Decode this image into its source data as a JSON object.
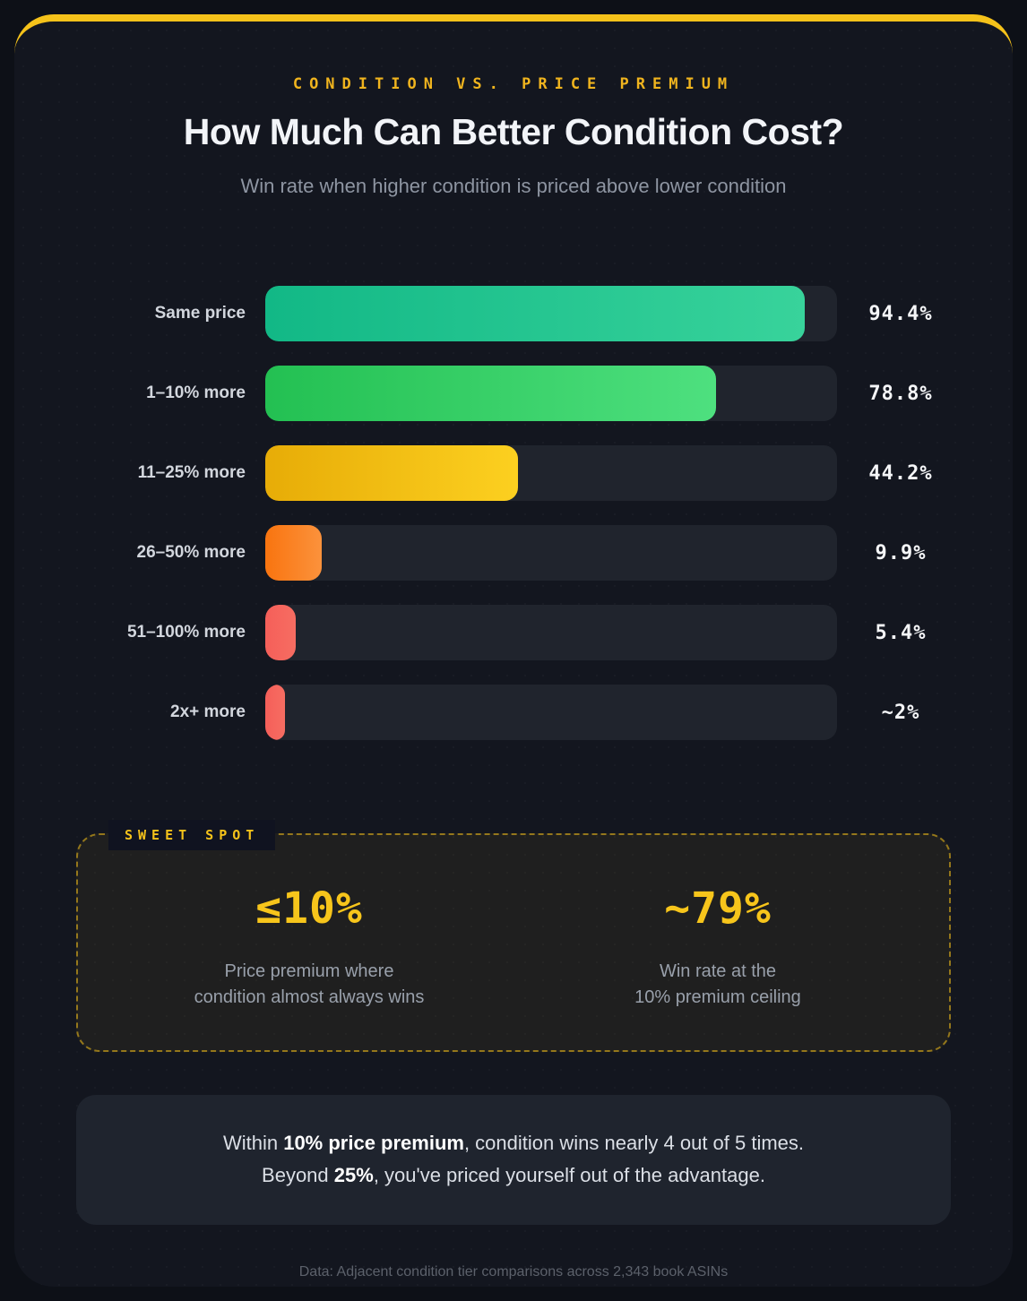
{
  "header": {
    "eyebrow": "CONDITION VS. PRICE PREMIUM",
    "title": "How Much Can Better Condition Cost?",
    "subtitle": "Win rate when higher condition is priced above lower condition"
  },
  "chart_data": {
    "type": "bar",
    "orientation": "horizontal",
    "title": "Win rate when higher condition is priced above lower condition",
    "categories": [
      "Same price",
      "1–10% more",
      "11–25% more",
      "26–50% more",
      "51–100% more",
      "2x+ more"
    ],
    "values": [
      94.4,
      78.8,
      44.2,
      9.9,
      5.4,
      2
    ],
    "value_labels": [
      "94.4%",
      "78.8%",
      "44.2%",
      "9.9%",
      "5.4%",
      "~2%"
    ],
    "xlim": [
      0,
      100
    ],
    "grid": false,
    "legend": "none",
    "track_color": "#20242d",
    "bar_gradients": [
      [
        "#12b886",
        "#38d39b"
      ],
      [
        "#23c052",
        "#4ee07f"
      ],
      [
        "#e7ac07",
        "#fcd020"
      ],
      [
        "#f9740f",
        "#fb923c"
      ],
      [
        "#f55f59",
        "#f66d62"
      ],
      [
        "#f55f59",
        "#f66d62"
      ]
    ]
  },
  "sweet_spot": {
    "tag": "SWEET SPOT",
    "stats": [
      {
        "value": "≤10%",
        "caption_line1": "Price premium where",
        "caption_line2": "condition almost always wins"
      },
      {
        "value": "~79%",
        "caption_line1": "Win rate at the",
        "caption_line2": "10% premium ceiling"
      }
    ]
  },
  "takeaway": {
    "line1_prefix": "Within ",
    "line1_bold": "10% price premium",
    "line1_suffix": ", condition wins nearly 4 out of 5 times.",
    "line2_prefix": "Beyond ",
    "line2_bold": "25%",
    "line2_suffix": ", you've priced yourself out of the advantage."
  },
  "footer": {
    "note": "Data: Adjacent condition tier comparisons across 2,343 book ASINs"
  },
  "colors": {
    "accent_yellow": "#f5c21a",
    "card_background": "#13161f",
    "page_background": "#0d1017",
    "track": "#20242d"
  }
}
